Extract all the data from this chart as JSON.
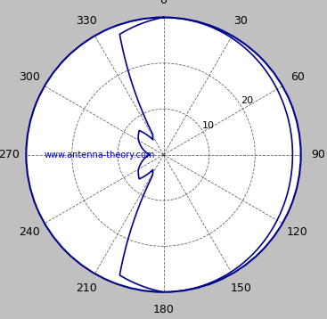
{
  "title": "",
  "bg_color": "#c0c0c0",
  "plot_bg_color": "#ffffff",
  "line_color": "#00008B",
  "grid_color": "#000080",
  "text_color": "#000000",
  "watermark_color": "#0000CD",
  "watermark_text": "www.antenna-theory.com",
  "r_max": 30,
  "r_ticks": [
    10,
    20,
    30
  ],
  "r_tick_labels": [
    "10",
    "20",
    ""
  ],
  "theta_ticks_deg": [
    0,
    30,
    60,
    90,
    120,
    150,
    180,
    210,
    240,
    270,
    300,
    330
  ],
  "figsize": [
    3.67,
    3.58
  ],
  "dpi": 100
}
